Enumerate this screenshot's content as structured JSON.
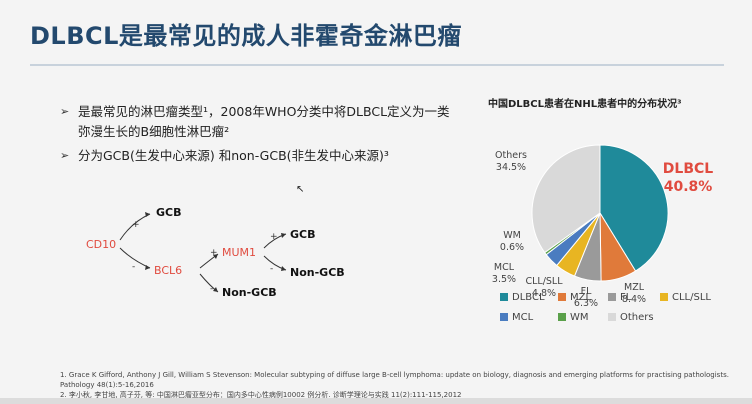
{
  "slide": {
    "title": "DLBCL是最常见的成人非霍奇金淋巴瘤",
    "bullets": [
      {
        "mark": "➢",
        "text": "是最常见的淋巴瘤类型¹，2008年WHO分类中将DLBCL定义为一类弥漫生长的B细胞性淋巴瘤²"
      },
      {
        "mark": "➢",
        "text": "分为GCB(生发中心来源) 和non-GCB(非生发中心来源)³"
      }
    ],
    "diagram": {
      "nodes": {
        "cd10": "CD10",
        "gcb1": "GCB",
        "bcl6": "BCL6",
        "mum1": "MUM1",
        "gcb2": "GCB",
        "nongcb1": "Non-GCB",
        "nongcb2": "Non-GCB"
      },
      "plus": "+",
      "minus": "-"
    },
    "references": [
      "1. Grace K Gifford,  Anthony J Gill, William S Stevenson: Molecular subtyping of diffuse large B-cell lymphoma: update on biology, diagnosis and emerging platforms for practising pathologists. Pathology 48(1):5-16,2016",
      "2. 李小秋, 李甘地, 高子芬, 等: 中国淋巴瘤亚型分布：国内多中心性病例10002 例分析. 诊断学理论与实践 11(2):111-115,2012"
    ]
  },
  "chart_data": {
    "type": "pie",
    "title": "中国DLBCL患者在NHL患者中的分布状况³",
    "slices": [
      {
        "name": "DLBCL",
        "value": 40.8,
        "color": "#1f8a9a"
      },
      {
        "name": "MZL",
        "value": 8.4,
        "color": "#e07a3a"
      },
      {
        "name": "FL",
        "value": 6.3,
        "color": "#9a9a9a"
      },
      {
        "name": "CLL/SLL",
        "value": 4.8,
        "color": "#e8b522"
      },
      {
        "name": "MCL",
        "value": 3.5,
        "color": "#4a7cc0"
      },
      {
        "name": "WM",
        "value": 0.6,
        "color": "#5aa04a"
      },
      {
        "name": "Others",
        "value": 34.5,
        "color": "#d9d9d9"
      }
    ],
    "labels": {
      "dlbcl_name": "DLBCL",
      "dlbcl_value": "40.8%",
      "mzl_name": "MZL",
      "mzl_value": "8.4%",
      "fl_name": "FL",
      "fl_value": "6.3%",
      "cll_name": "CLL/SLL",
      "cll_value": "4.8%",
      "mcl_name": "MCL",
      "mcl_value": "3.5%",
      "wm_name": "WM",
      "wm_value": "0.6%",
      "others_name": "Others",
      "others_value": "34.5%"
    },
    "legend": [
      "DLBCL",
      "MZL",
      "FL",
      "CLL/SLL",
      "MCL",
      "WM",
      "Others"
    ]
  }
}
